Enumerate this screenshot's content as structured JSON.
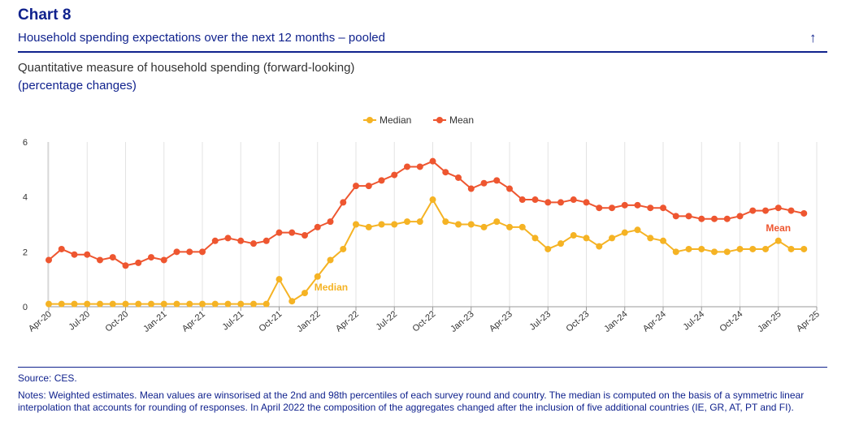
{
  "header": {
    "chart_label": "Chart 8",
    "title": "Household spending expectations over the next 12 months – pooled",
    "back_icon": "arrow-up-icon",
    "subtitle": "Quantitative measure of household spending (forward-looking)",
    "unit": "(percentage changes)"
  },
  "chart_data": {
    "type": "line",
    "x": [
      "Apr-20",
      "May-20",
      "Jun-20",
      "Jul-20",
      "Aug-20",
      "Sep-20",
      "Oct-20",
      "Nov-20",
      "Dec-20",
      "Jan-21",
      "Feb-21",
      "Mar-21",
      "Apr-21",
      "May-21",
      "Jun-21",
      "Jul-21",
      "Aug-21",
      "Sep-21",
      "Oct-21",
      "Nov-21",
      "Dec-21",
      "Jan-22",
      "Feb-22",
      "Mar-22",
      "Apr-22",
      "May-22",
      "Jun-22",
      "Jul-22",
      "Aug-22",
      "Sep-22",
      "Oct-22",
      "Nov-22",
      "Dec-22",
      "Jan-23",
      "Feb-23",
      "Mar-23",
      "Apr-23",
      "May-23",
      "Jun-23",
      "Jul-23",
      "Aug-23",
      "Sep-23",
      "Oct-23",
      "Nov-23",
      "Dec-23",
      "Jan-24",
      "Feb-24",
      "Mar-24",
      "Apr-24",
      "May-24",
      "Jun-24",
      "Jul-24",
      "Aug-24",
      "Sep-24",
      "Oct-24",
      "Nov-24",
      "Dec-24",
      "Jan-25",
      "Feb-25",
      "Mar-25"
    ],
    "x_tick_labels": [
      "Apr-20",
      "Jul-20",
      "Oct-20",
      "Jan-21",
      "Apr-21",
      "Jul-21",
      "Oct-21",
      "Jan-22",
      "Apr-22",
      "Jul-22",
      "Oct-22",
      "Jan-23",
      "Apr-23",
      "Jul-23",
      "Oct-23",
      "Jan-24",
      "Apr-24",
      "Jul-24",
      "Oct-24",
      "Jan-25",
      "Apr-25"
    ],
    "y_ticks": [
      0,
      2,
      4,
      6
    ],
    "ylim": [
      0,
      6
    ],
    "grid": "vertical",
    "legend_position": "top-center",
    "series": [
      {
        "name": "Median",
        "color": "#f5b324",
        "values": [
          0.1,
          0.1,
          0.1,
          0.1,
          0.1,
          0.1,
          0.1,
          0.1,
          0.1,
          0.1,
          0.1,
          0.1,
          0.1,
          0.1,
          0.1,
          0.1,
          0.1,
          0.1,
          1.0,
          0.2,
          0.5,
          1.1,
          1.7,
          2.1,
          3.0,
          2.9,
          3.0,
          3.0,
          3.1,
          3.1,
          3.9,
          3.1,
          3.0,
          3.0,
          2.9,
          3.1,
          2.9,
          2.9,
          2.5,
          2.1,
          2.3,
          2.6,
          2.5,
          2.2,
          2.5,
          2.7,
          2.8,
          2.5,
          2.4,
          2.0,
          2.1,
          2.1,
          2.0,
          2.0,
          2.1,
          2.1,
          2.1,
          2.4,
          2.1,
          2.1
        ]
      },
      {
        "name": "Mean",
        "color": "#ee5630",
        "values": [
          1.7,
          2.1,
          1.9,
          1.9,
          1.7,
          1.8,
          1.5,
          1.6,
          1.8,
          1.7,
          2.0,
          2.0,
          2.0,
          2.4,
          2.5,
          2.4,
          2.3,
          2.4,
          2.7,
          2.7,
          2.6,
          2.9,
          3.1,
          3.8,
          4.4,
          4.4,
          4.6,
          4.8,
          5.1,
          5.1,
          5.3,
          4.9,
          4.7,
          4.3,
          4.5,
          4.6,
          4.3,
          3.9,
          3.9,
          3.8,
          3.8,
          3.9,
          3.8,
          3.6,
          3.6,
          3.7,
          3.7,
          3.6,
          3.6,
          3.3,
          3.3,
          3.2,
          3.2,
          3.2,
          3.3,
          3.5,
          3.5,
          3.6,
          3.5,
          3.4
        ]
      }
    ],
    "annotations": [
      {
        "text": "Median",
        "series": "Median"
      },
      {
        "text": "Mean",
        "series": "Mean"
      }
    ]
  },
  "footer": {
    "source": "Source: CES.",
    "notes": "Notes: Weighted estimates. Mean values are winsorised at the 2nd and 98th percentiles of each survey round and country. The median is computed on the basis of a symmetric linear interpolation that accounts for rounding of responses. In April 2022 the composition of the aggregates changed after the inclusion of five additional countries (IE, GR, AT, PT and FI)."
  }
}
